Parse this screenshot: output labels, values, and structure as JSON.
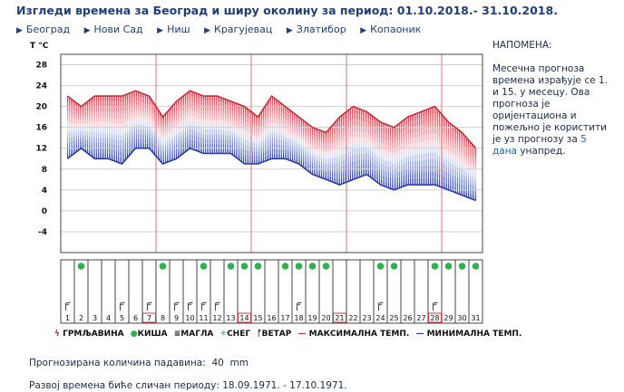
{
  "title": "Изгледи времена за Београд и ширу околину за период: 01.10.2018.- 31.10.2018.",
  "nav": [
    "Београд",
    "Нови Сад",
    "Ниш",
    "Крагујевац",
    "Златибор",
    "Копаоник"
  ],
  "note": {
    "heading": "НАПОМЕНА:",
    "text": "Месечна прогноза времена израђује се 1. и 15. у месецу. Ова прогноза је оријентациона и пожељно је користити је уз прогнозу за ",
    "link": "5 дана",
    "tail": " унапред."
  },
  "chart_data": {
    "type": "line",
    "ylabel": "T °C",
    "ylim": [
      -8,
      30
    ],
    "yticks": [
      28,
      24,
      20,
      16,
      12,
      8,
      4,
      0,
      -4
    ],
    "x": [
      1,
      2,
      3,
      4,
      5,
      6,
      7,
      8,
      9,
      10,
      11,
      12,
      13,
      14,
      15,
      16,
      17,
      18,
      19,
      20,
      21,
      22,
      23,
      24,
      25,
      26,
      27,
      28,
      29,
      30,
      31
    ],
    "series": [
      {
        "name": "МАКСИМАЛНА ТЕМП.",
        "color": "#c0303a",
        "values": [
          22,
          20,
          22,
          22,
          22,
          23,
          22,
          18,
          21,
          23,
          22,
          22,
          21,
          20,
          18,
          22,
          20,
          18,
          16,
          15,
          18,
          20,
          19,
          17,
          16,
          18,
          19,
          20,
          17,
          15,
          12
        ]
      },
      {
        "name": "МИНИМАЛНА ТЕМП.",
        "color": "#2b3a9a",
        "values": [
          10,
          12,
          10,
          10,
          9,
          12,
          12,
          9,
          10,
          12,
          11,
          11,
          11,
          9,
          9,
          10,
          10,
          9,
          7,
          6,
          5,
          6,
          7,
          5,
          4,
          5,
          5,
          5,
          4,
          3,
          2
        ]
      }
    ],
    "weather": {
      "rain_days": [
        2,
        8,
        11,
        13,
        14,
        15,
        17,
        18,
        19,
        20,
        24,
        25,
        28,
        29,
        30,
        31
      ],
      "wind_days": [
        1,
        5,
        7,
        9,
        10,
        11,
        12,
        18,
        24,
        28
      ],
      "highlight_days": [
        7,
        14,
        21,
        28
      ]
    },
    "legend": [
      "ГРМЉАВИНА",
      "КИША",
      "МАГЛА",
      "СНЕГ",
      "ВЕТАР",
      "МАКСИМАЛНА ТЕМП.",
      "МИНИМАЛНА ТЕМП."
    ]
  },
  "precip_label": "Прогнозирана количина падавина:",
  "precip_value": "40",
  "precip_unit": "mm",
  "similar_label": "Развој времена биће сличан периоду:",
  "similar_value": "18.09.1971. - 17.10.1971."
}
